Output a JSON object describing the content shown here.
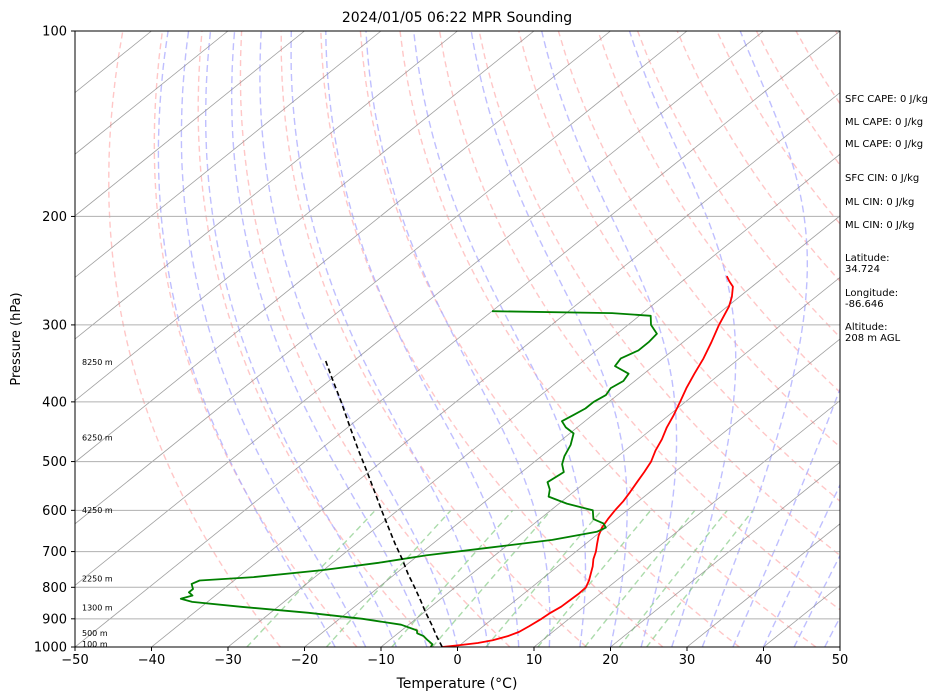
{
  "chart_data": {
    "type": "skew-t",
    "title": "2024/01/05 06:22 MPR Sounding",
    "xlabel": "Temperature (°C)",
    "ylabel": "Pressure (hPa)",
    "xlim": [
      -50,
      50
    ],
    "ylim": [
      1000,
      100
    ],
    "y_scale": "log",
    "grid": true,
    "x_ticks": [
      -50,
      -40,
      -30,
      -20,
      -10,
      0,
      10,
      20,
      30,
      40,
      50
    ],
    "x_tick_labels": [
      "−50",
      "−40",
      "−30",
      "−20",
      "−10",
      "0",
      "10",
      "20",
      "30",
      "40",
      "50"
    ],
    "y_ticks": [
      1000,
      900,
      800,
      700,
      600,
      500,
      400,
      300,
      200,
      100
    ],
    "y_tick_labels": [
      "1000",
      "900",
      "800",
      "700",
      "600",
      "500",
      "400",
      "300",
      "200",
      "100"
    ],
    "height_labels": [
      {
        "text": "100 m",
        "p": 990
      },
      {
        "text": "500 m",
        "p": 950
      },
      {
        "text": "1300 m",
        "p": 865
      },
      {
        "text": "2250 m",
        "p": 775
      },
      {
        "text": "4250 m",
        "p": 600
      },
      {
        "text": "6250 m",
        "p": 458
      },
      {
        "text": "8250 m",
        "p": 345
      }
    ],
    "series": [
      {
        "role": "temperature",
        "color": "#ff0000",
        "points": [
          [
            1000,
            -2
          ],
          [
            993,
            0
          ],
          [
            985,
            2
          ],
          [
            975,
            3.5
          ],
          [
            960,
            4.8
          ],
          [
            945,
            5.6
          ],
          [
            925,
            6
          ],
          [
            900,
            6.4
          ],
          [
            880,
            6.6
          ],
          [
            860,
            7
          ],
          [
            840,
            7.1
          ],
          [
            820,
            7.2
          ],
          [
            800,
            7.1
          ],
          [
            780,
            6.4
          ],
          [
            760,
            5.5
          ],
          [
            740,
            4.6
          ],
          [
            720,
            3.5
          ],
          [
            700,
            2.6
          ],
          [
            680,
            1.5
          ],
          [
            660,
            0.4
          ],
          [
            640,
            -0.5
          ],
          [
            620,
            -1.1
          ],
          [
            600,
            -1.6
          ],
          [
            580,
            -2
          ],
          [
            560,
            -2.6
          ],
          [
            540,
            -3.3
          ],
          [
            520,
            -4
          ],
          [
            500,
            -4.8
          ],
          [
            480,
            -6
          ],
          [
            460,
            -7
          ],
          [
            440,
            -8.3
          ],
          [
            420,
            -9.4
          ],
          [
            400,
            -10.7
          ],
          [
            380,
            -12.1
          ],
          [
            360,
            -13.4
          ],
          [
            340,
            -14.7
          ],
          [
            320,
            -16.3
          ],
          [
            300,
            -18.1
          ],
          [
            280,
            -19.8
          ],
          [
            270,
            -21
          ],
          [
            260,
            -22.5
          ],
          [
            255,
            -23.8
          ],
          [
            250,
            -25
          ]
        ]
      },
      {
        "role": "dewpoint",
        "color": "#008000",
        "points": [
          [
            1000,
            -3.5
          ],
          [
            990,
            -3.7
          ],
          [
            975,
            -5
          ],
          [
            960,
            -6.2
          ],
          [
            950,
            -7.5
          ],
          [
            940,
            -8
          ],
          [
            920,
            -11
          ],
          [
            900,
            -17
          ],
          [
            880,
            -25
          ],
          [
            860,
            -35
          ],
          [
            845,
            -42
          ],
          [
            835,
            -44
          ],
          [
            825,
            -43
          ],
          [
            815,
            -44
          ],
          [
            805,
            -44
          ],
          [
            790,
            -45
          ],
          [
            780,
            -44.5
          ],
          [
            770,
            -38
          ],
          [
            750,
            -30
          ],
          [
            730,
            -24
          ],
          [
            710,
            -19
          ],
          [
            690,
            -12
          ],
          [
            670,
            -5
          ],
          [
            650,
            -0.5
          ],
          [
            640,
            0
          ],
          [
            630,
            -1
          ],
          [
            620,
            -3
          ],
          [
            600,
            -4.5
          ],
          [
            585,
            -9
          ],
          [
            570,
            -12.5
          ],
          [
            555,
            -13.5
          ],
          [
            540,
            -15
          ],
          [
            520,
            -14.5
          ],
          [
            505,
            -16
          ],
          [
            490,
            -17
          ],
          [
            470,
            -18
          ],
          [
            450,
            -19.5
          ],
          [
            440,
            -21.5
          ],
          [
            430,
            -23
          ],
          [
            420,
            -22.5
          ],
          [
            410,
            -22
          ],
          [
            400,
            -22
          ],
          [
            390,
            -21.5
          ],
          [
            380,
            -22
          ],
          [
            370,
            -21.5
          ],
          [
            360,
            -22
          ],
          [
            350,
            -25
          ],
          [
            340,
            -25.5
          ],
          [
            330,
            -24.5
          ],
          [
            320,
            -24.5
          ],
          [
            310,
            -24.8
          ],
          [
            300,
            -27
          ],
          [
            290,
            -28.5
          ],
          [
            287,
            -34
          ],
          [
            285,
            -50
          ]
        ]
      },
      {
        "role": "parcel",
        "color": "#000000",
        "style": "dashed",
        "points": [
          [
            1000,
            -2
          ],
          [
            960,
            -4.5
          ],
          [
            920,
            -7
          ],
          [
            880,
            -9.7
          ],
          [
            840,
            -12.4
          ],
          [
            800,
            -15.3
          ],
          [
            760,
            -18.4
          ],
          [
            720,
            -21.5
          ],
          [
            680,
            -24.9
          ],
          [
            640,
            -28.4
          ],
          [
            600,
            -32.1
          ],
          [
            560,
            -36
          ],
          [
            520,
            -40.2
          ],
          [
            480,
            -44.8
          ],
          [
            440,
            -49.7
          ],
          [
            400,
            -55
          ],
          [
            360,
            -61
          ],
          [
            340,
            -64.2
          ]
        ]
      }
    ],
    "reference_lines": {
      "isotherms_color": "#888888",
      "dry_adiabats_color": "#ff9999",
      "moist_adiabats_color": "#aaaaff",
      "mixing_ratio_color": "#88cc88"
    },
    "side_panel": [
      "SFC CAPE: 0 J/kg",
      "ML CAPE: 0 J/kg",
      "ML CAPE: 0 J/kg",
      "SFC CIN: 0 J/kg",
      "ML CIN: 0 J/kg",
      "ML CIN: 0 J/kg",
      "Latitude:\n34.724",
      "Longitude:\n-86.646",
      "Altitude:\n208 m AGL"
    ]
  }
}
